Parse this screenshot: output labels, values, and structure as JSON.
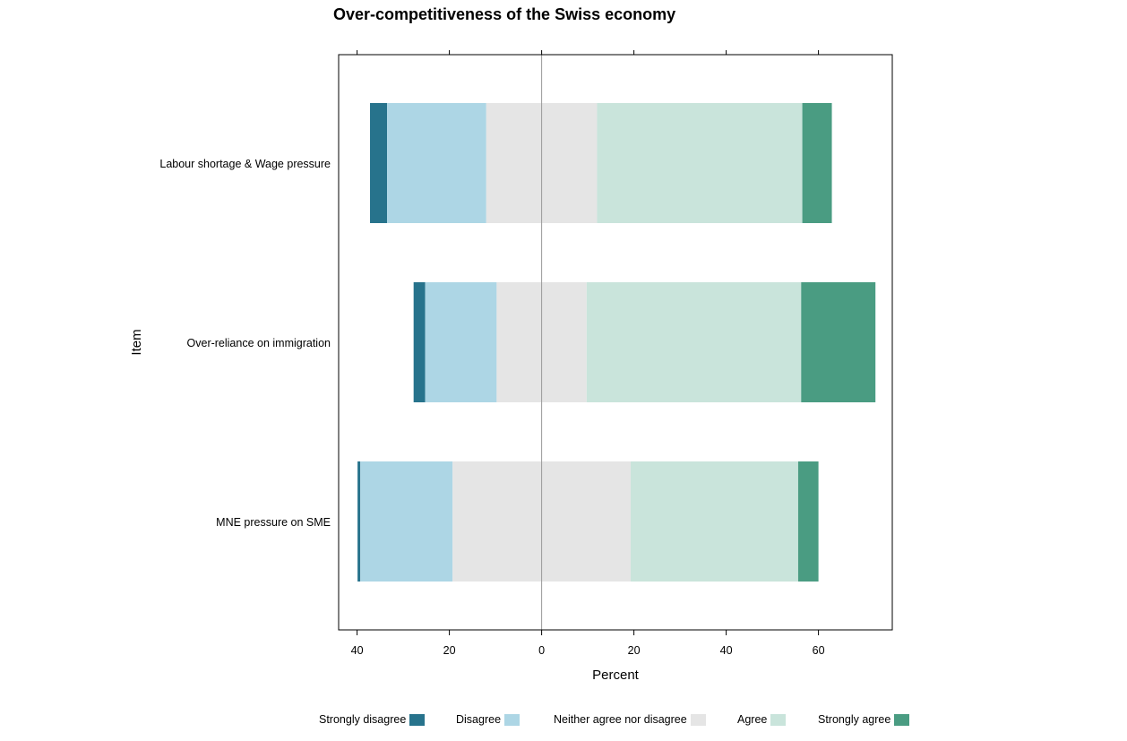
{
  "chart_data": {
    "type": "bar",
    "orientation": "horizontal-diverging",
    "title": "Over-competitiveness of the Swiss economy",
    "xlabel": "Percent",
    "ylabel": "Item",
    "xlim": [
      -44,
      76
    ],
    "xticks": [
      {
        "value": -40,
        "label": "40"
      },
      {
        "value": -20,
        "label": "20"
      },
      {
        "value": 0,
        "label": "0"
      },
      {
        "value": 20,
        "label": "20"
      },
      {
        "value": 40,
        "label": "40"
      },
      {
        "value": 60,
        "label": "60"
      }
    ],
    "categories": [
      "Labour shortage & Wage pressure",
      "Over-reliance on immigration",
      "MNE pressure on SME"
    ],
    "series": [
      {
        "name": "Strongly disagree",
        "color": "#27738C",
        "values": [
          3.7,
          2.5,
          0.6
        ]
      },
      {
        "name": "Disagree",
        "color": "#ADD6E5",
        "values": [
          21.5,
          15.5,
          20.0
        ]
      },
      {
        "name": "Neither agree nor disagree",
        "color": "#E5E5E5",
        "values": [
          24.0,
          19.5,
          38.6
        ]
      },
      {
        "name": "Agree",
        "color": "#C9E4DB",
        "values": [
          44.5,
          46.5,
          36.3
        ]
      },
      {
        "name": "Strongly agree",
        "color": "#4A9C82",
        "values": [
          6.4,
          16.1,
          4.4
        ]
      }
    ],
    "legend_position": "bottom",
    "grid": false,
    "zero_line": true
  }
}
